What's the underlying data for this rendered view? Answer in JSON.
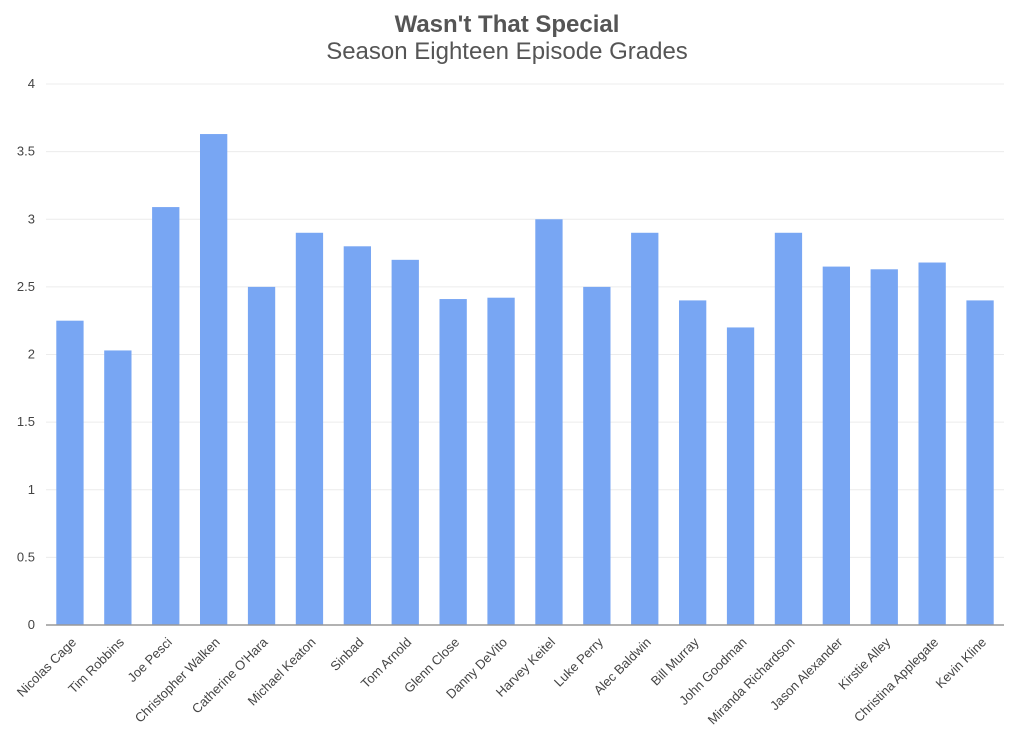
{
  "chart_data": {
    "type": "bar",
    "title": "Wasn't That Special",
    "subtitle": "Season Eighteen Episode Grades",
    "categories": [
      "Nicolas Cage",
      "Tim Robbins",
      "Joe Pesci",
      "Christopher Walken",
      "Catherine O'Hara",
      "Michael Keaton",
      "Sinbad",
      "Tom Arnold",
      "Glenn Close",
      "Danny DeVito",
      "Harvey Keitel",
      "Luke Perry",
      "Alec Baldwin",
      "Bill Murray",
      "John Goodman",
      "Miranda Richardson",
      "Jason Alexander",
      "Kirstie Alley",
      "Christina Applegate",
      "Kevin Kline"
    ],
    "values": [
      2.25,
      2.03,
      3.09,
      3.63,
      2.5,
      2.9,
      2.8,
      2.7,
      2.41,
      2.42,
      3.0,
      2.5,
      2.9,
      2.4,
      2.2,
      2.9,
      2.65,
      2.63,
      2.68,
      2.4
    ],
    "ylim": [
      0,
      4
    ],
    "yticks": [
      "0",
      "0.5",
      "1",
      "1.5",
      "2",
      "2.5",
      "3",
      "3.5",
      "4"
    ],
    "grid": true,
    "legend": "none",
    "bar_color": "#78a6f3",
    "xlabel": "",
    "ylabel": ""
  }
}
